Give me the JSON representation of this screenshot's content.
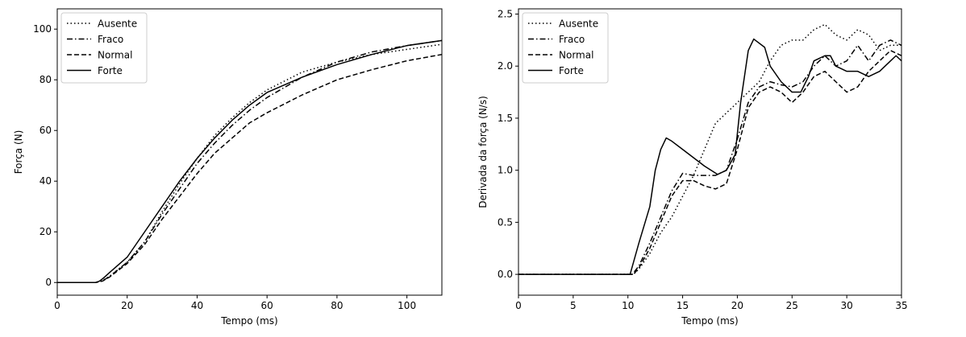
{
  "chart_data": [
    {
      "type": "line",
      "xlabel": "Tempo (ms)",
      "ylabel": "Força (N)",
      "xlim": [
        0,
        110
      ],
      "ylim": [
        -5,
        108
      ],
      "xticks": [
        0,
        20,
        40,
        60,
        80,
        100
      ],
      "yticks": [
        0,
        20,
        40,
        60,
        80,
        100
      ],
      "grid": false,
      "legend_position": "top-left",
      "series": [
        {
          "name": "Ausente",
          "style": "dotted",
          "x": [
            0,
            11,
            13,
            15,
            20,
            25,
            30,
            35,
            40,
            45,
            50,
            55,
            60,
            70,
            80,
            90,
            100,
            110
          ],
          "y": [
            0,
            0,
            0.8,
            2.5,
            8,
            16,
            28,
            39,
            49,
            58,
            65,
            71,
            76,
            83,
            87,
            90,
            92,
            94
          ]
        },
        {
          "name": "Fraco",
          "style": "dashdot",
          "x": [
            0,
            11,
            13,
            15,
            20,
            25,
            30,
            35,
            40,
            45,
            50,
            55,
            60,
            70,
            80,
            90,
            100,
            110
          ],
          "y": [
            0,
            0,
            0.7,
            2.4,
            8,
            16,
            27,
            37,
            47,
            55,
            62,
            68,
            73,
            81,
            87,
            91,
            93.5,
            95.5
          ]
        },
        {
          "name": "Normal",
          "style": "dashed",
          "x": [
            0,
            11,
            13,
            15,
            20,
            25,
            30,
            35,
            40,
            45,
            50,
            55,
            60,
            70,
            80,
            90,
            100,
            110
          ],
          "y": [
            0,
            0,
            0.6,
            2.2,
            7.5,
            15,
            25,
            34,
            43,
            51,
            57,
            63,
            67,
            74,
            80,
            84,
            87.5,
            90
          ]
        },
        {
          "name": "Forte",
          "style": "solid",
          "x": [
            0,
            11,
            12,
            13,
            15,
            20,
            25,
            30,
            35,
            40,
            45,
            50,
            55,
            60,
            70,
            80,
            90,
            100,
            110
          ],
          "y": [
            0,
            0,
            0.5,
            1.5,
            4,
            10,
            20,
            30,
            40,
            49,
            57,
            64,
            70,
            75,
            81,
            86,
            90,
            93.5,
            95.5
          ]
        }
      ]
    },
    {
      "type": "line",
      "xlabel": "Tempo (ms)",
      "ylabel": "Derivada da força (N/s)",
      "xlim": [
        0,
        35
      ],
      "ylim": [
        -0.2,
        2.55
      ],
      "xticks": [
        0,
        5,
        10,
        15,
        20,
        25,
        30,
        35
      ],
      "yticks": [
        0.0,
        0.5,
        1.0,
        1.5,
        2.0,
        2.5
      ],
      "grid": false,
      "legend_position": "top-left",
      "series": [
        {
          "name": "Ausente",
          "style": "dotted",
          "x": [
            0,
            10.5,
            11,
            12,
            13,
            14,
            15,
            16,
            17,
            18,
            19,
            20,
            21,
            22,
            23,
            24,
            25,
            26,
            27,
            28,
            29,
            30,
            31,
            32,
            33,
            34,
            35
          ],
          "y": [
            0,
            0,
            0.05,
            0.2,
            0.4,
            0.55,
            0.75,
            0.95,
            1.2,
            1.45,
            1.55,
            1.65,
            1.75,
            1.85,
            2.05,
            2.2,
            2.25,
            2.25,
            2.35,
            2.4,
            2.3,
            2.25,
            2.35,
            2.3,
            2.15,
            2.2,
            2.2
          ]
        },
        {
          "name": "Fraco",
          "style": "dashdot",
          "x": [
            0,
            10.4,
            11,
            12,
            13,
            14,
            15,
            16,
            17,
            18,
            19,
            20,
            21,
            22,
            23,
            24,
            25,
            26,
            27,
            28,
            29,
            30,
            31,
            32,
            33,
            34,
            35
          ],
          "y": [
            0,
            0,
            0.08,
            0.3,
            0.55,
            0.8,
            0.97,
            0.95,
            0.95,
            0.95,
            1.0,
            1.3,
            1.65,
            1.8,
            1.85,
            1.82,
            1.8,
            1.85,
            2.0,
            2.1,
            2.0,
            2.05,
            2.2,
            2.05,
            2.2,
            2.25,
            2.2
          ]
        },
        {
          "name": "Normal",
          "style": "dashed",
          "x": [
            0,
            10.5,
            11,
            12,
            13,
            14,
            15,
            16,
            17,
            18,
            19,
            20,
            21,
            22,
            23,
            24,
            25,
            26,
            27,
            28,
            29,
            30,
            31,
            32,
            33,
            34,
            35
          ],
          "y": [
            0,
            0,
            0.06,
            0.25,
            0.5,
            0.75,
            0.9,
            0.9,
            0.85,
            0.82,
            0.87,
            1.2,
            1.6,
            1.75,
            1.8,
            1.75,
            1.65,
            1.75,
            1.9,
            1.95,
            1.85,
            1.75,
            1.8,
            1.95,
            2.05,
            2.15,
            2.1
          ]
        },
        {
          "name": "Forte",
          "style": "solid",
          "x": [
            0,
            10.2,
            11,
            12,
            12.5,
            13,
            13.5,
            14,
            15,
            16,
            17,
            18.2,
            19,
            19.8,
            20.3,
            21,
            21.5,
            22.5,
            23,
            24,
            25,
            25.8,
            26.5,
            27,
            28,
            28.5,
            29,
            30,
            31,
            32,
            33,
            34,
            34.5,
            35
          ],
          "y": [
            0,
            0,
            0.3,
            0.65,
            1.0,
            1.2,
            1.31,
            1.28,
            1.2,
            1.12,
            1.04,
            0.96,
            1.0,
            1.15,
            1.65,
            2.15,
            2.26,
            2.18,
            2.0,
            1.85,
            1.75,
            1.75,
            1.9,
            2.05,
            2.1,
            2.1,
            2.0,
            1.95,
            1.95,
            1.9,
            1.95,
            2.05,
            2.1,
            2.05
          ]
        }
      ]
    }
  ]
}
